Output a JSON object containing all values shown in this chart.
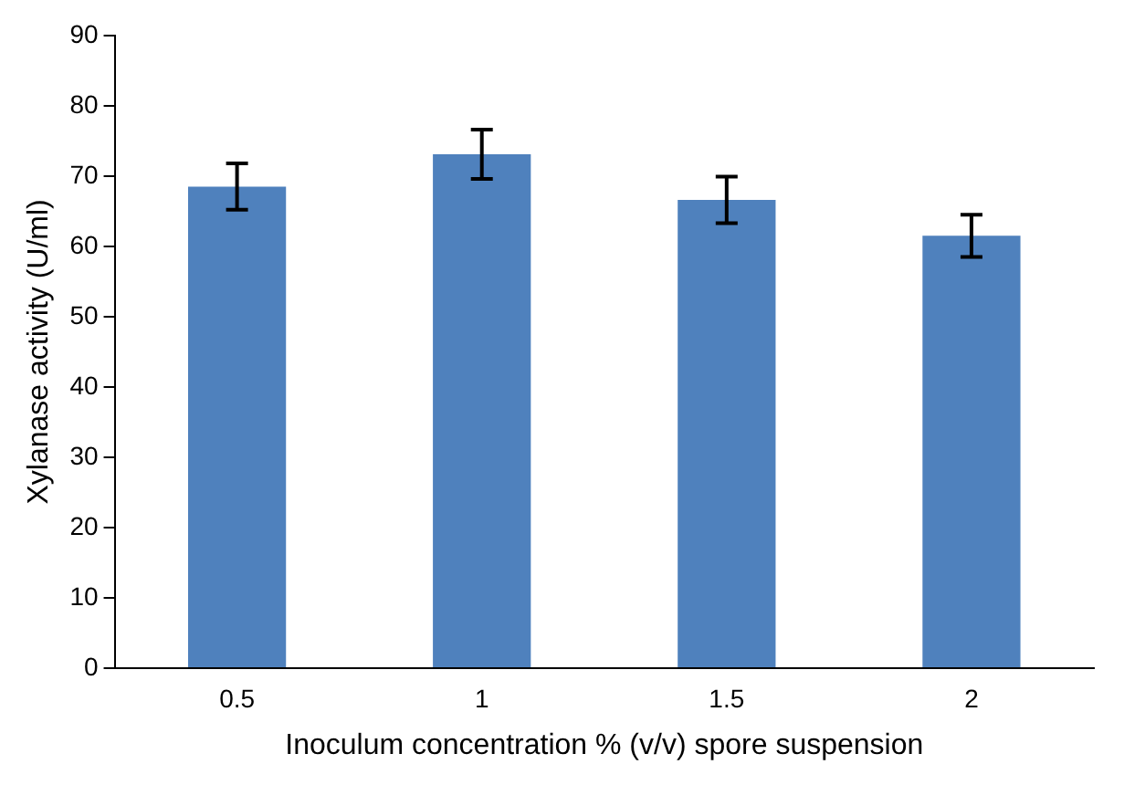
{
  "chart_data": {
    "type": "bar",
    "xlabel": "Inoculum concentration % (v/v) spore suspension",
    "ylabel": "Xylanase activity (U/ml)",
    "categories": [
      "0.5",
      "1",
      "1.5",
      "2"
    ],
    "values": [
      68.5,
      73.1,
      66.6,
      61.5
    ],
    "errors": [
      3.3,
      3.5,
      3.3,
      3.0
    ],
    "color": "#4f81bd",
    "ylim": [
      0,
      90
    ],
    "yticks": [
      0,
      10,
      20,
      30,
      40,
      50,
      60,
      70,
      80,
      90
    ],
    "grid": false,
    "legend": false
  }
}
